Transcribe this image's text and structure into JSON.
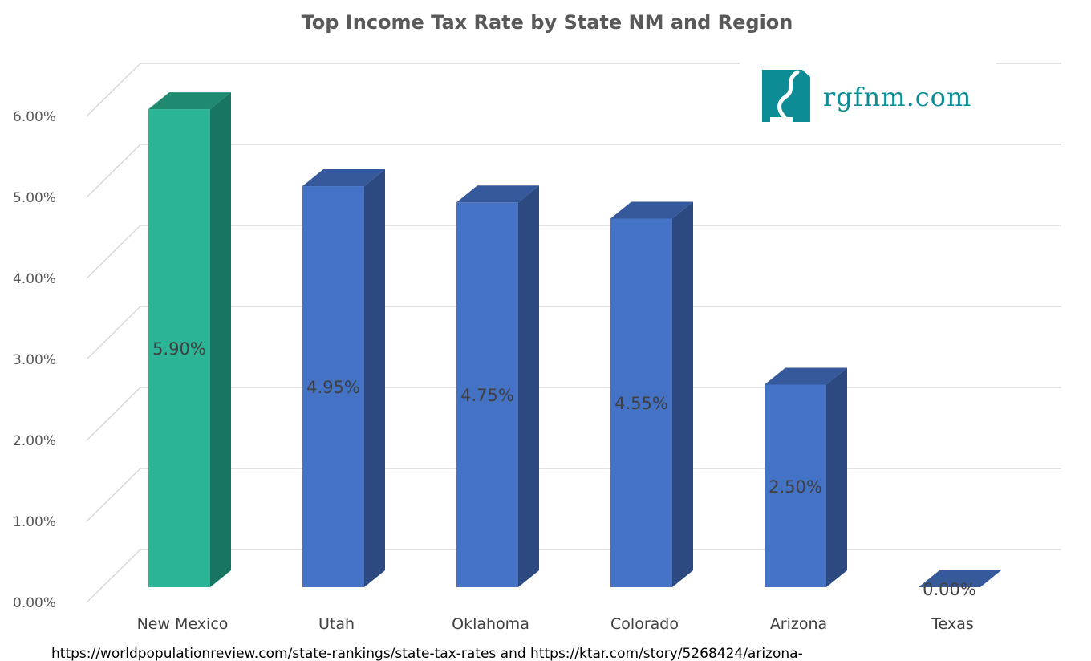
{
  "chart_data": {
    "type": "bar",
    "title": "Top Income Tax Rate by State NM and Region",
    "categories": [
      "New Mexico",
      "Utah",
      "Oklahoma",
      "Colorado",
      "Arizona",
      "Texas"
    ],
    "values": [
      5.9,
      4.95,
      4.75,
      4.55,
      2.5,
      0.0
    ],
    "data_labels": [
      "5.90%",
      "4.95%",
      "4.75%",
      "4.55%",
      "2.50%",
      "0.00%"
    ],
    "bar_colors": [
      "#2bb596",
      "#4472c4",
      "#4472c4",
      "#4472c4",
      "#4472c4",
      "#4472c4"
    ],
    "side_colors": [
      "#177562",
      "#2c4a80",
      "#2c4a80",
      "#2c4a80",
      "#2c4a80",
      "#2c4a80"
    ],
    "top_colors": [
      "#1f8a70",
      "#36599c",
      "#36599c",
      "#36599c",
      "#36599c",
      "#36599c"
    ],
    "ylim": [
      0,
      6
    ],
    "yticks": [
      0,
      1,
      2,
      3,
      4,
      5,
      6
    ],
    "ytick_labels": [
      "0.00%",
      "1.00%",
      "2.00%",
      "3.00%",
      "4.00%",
      "5.00%",
      "6.00%"
    ],
    "grid": true,
    "style": "3d-column"
  },
  "logo": {
    "text": "rgfnm.com",
    "icon": "new-mexico-river-logo-icon",
    "color": "#0e8c95"
  },
  "source_text": "https://worldpopulationreview.com/state-rankings/state-tax-rates  and  https://ktar.com/story/5268424/arizona-"
}
